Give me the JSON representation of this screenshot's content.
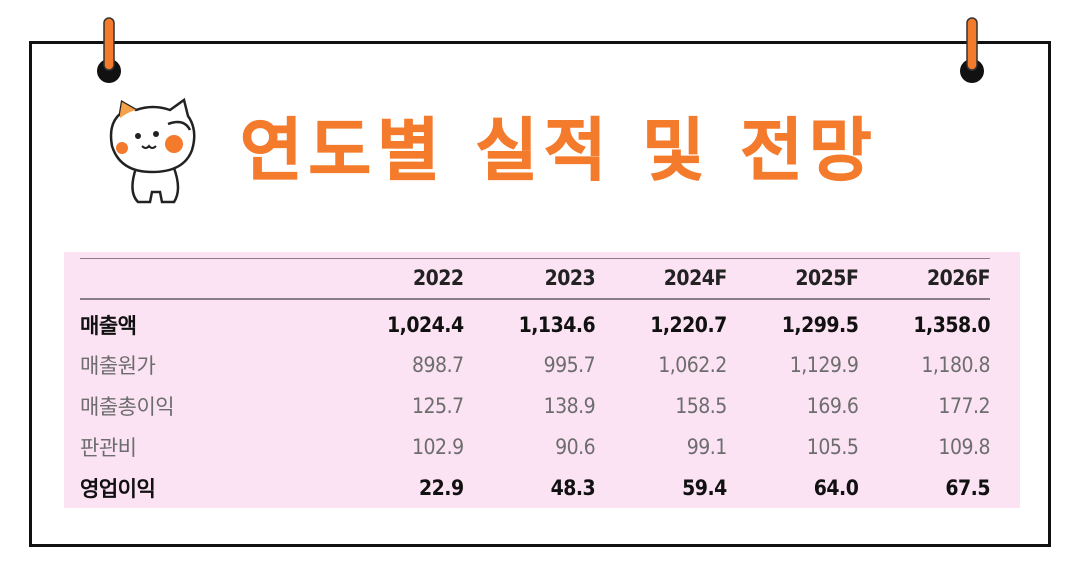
{
  "title": "연도별 실적 및 전망",
  "colors": {
    "accent": "#f47a2c",
    "table_bg": "#fbe3f3",
    "border": "#111111"
  },
  "chart_data": {
    "type": "table",
    "columns": [
      "",
      "2022",
      "2023",
      "2024F",
      "2025F",
      "2026F"
    ],
    "rows": [
      {
        "label": "매출액",
        "emphasis": true,
        "values": [
          "1,024.4",
          "1,134.6",
          "1,220.7",
          "1,299.5",
          "1,358.0"
        ]
      },
      {
        "label": "매출원가",
        "emphasis": false,
        "values": [
          "898.7",
          "995.7",
          "1,062.2",
          "1,129.9",
          "1,180.8"
        ]
      },
      {
        "label": "매출총이익",
        "emphasis": false,
        "values": [
          "125.7",
          "138.9",
          "158.5",
          "169.6",
          "177.2"
        ]
      },
      {
        "label": "판관비",
        "emphasis": false,
        "values": [
          "102.9",
          "90.6",
          "99.1",
          "105.5",
          "109.8"
        ]
      },
      {
        "label": "영업이익",
        "emphasis": true,
        "values": [
          "22.9",
          "48.3",
          "59.4",
          "64.0",
          "67.5"
        ]
      }
    ]
  },
  "icons": [
    "pushpin-icon",
    "cat-mascot-icon"
  ]
}
